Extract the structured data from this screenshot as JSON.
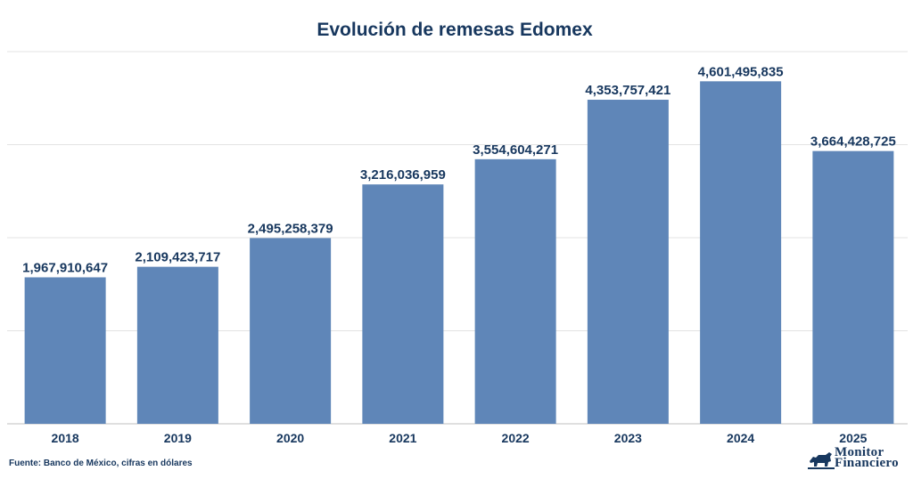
{
  "chart_data": {
    "type": "bar",
    "title": "Evolución de remesas Edomex",
    "categories": [
      "2018",
      "2019",
      "2020",
      "2021",
      "2022",
      "2023",
      "2024",
      "2025"
    ],
    "values": [
      1967910647,
      2109423717,
      2495258379,
      3216036959,
      3554604271,
      4353757421,
      4601495835,
      3664428725
    ],
    "value_labels": [
      "1,967,910,647",
      "2,109,423,717",
      "2,495,258,379",
      "3,216,036,959",
      "3,554,604,271",
      "4,353,757,421",
      "4,601,495,835",
      "3,664,428,725"
    ],
    "ylim": [
      0,
      5000000000
    ],
    "gridlines": [
      0,
      1250000000,
      2500000000,
      3750000000,
      5000000000
    ],
    "grid": true,
    "legend": "none"
  },
  "colors": {
    "bar": "#5f86b8",
    "text": "#17375e",
    "grid": "#e3e3e3"
  },
  "footer": {
    "source": "Fuente: Banco de México, cifras en dólares"
  },
  "logo": {
    "line1": "Monitor",
    "line2": "Financiero",
    "icon": "bull-icon"
  }
}
